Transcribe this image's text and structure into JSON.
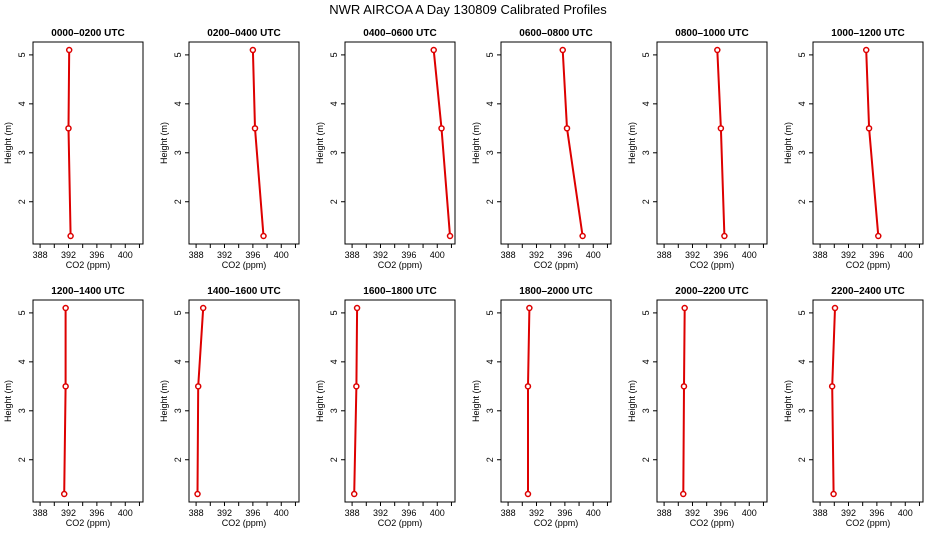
{
  "figure": {
    "title": "NWR AIRCOA A  Day 130809  Calibrated Profiles"
  },
  "chart_data": [
    {
      "type": "line",
      "title": "0000–0200 UTC",
      "xlabel": "CO2 (ppm)",
      "ylabel": "Height (m)",
      "xlim": [
        387,
        402.5
      ],
      "ylim": [
        1.3,
        5.1
      ],
      "x_ticks": [
        388,
        392,
        396,
        400
      ],
      "y_ticks": [
        2,
        3,
        4,
        5
      ],
      "series": [
        {
          "color": "#dd0000",
          "x": [
            392.1,
            392.0,
            392.3
          ],
          "y": [
            5.1,
            3.5,
            1.3
          ]
        }
      ]
    },
    {
      "type": "line",
      "title": "0200–0400 UTC",
      "xlabel": "CO2 (ppm)",
      "ylabel": "Height (m)",
      "xlim": [
        387,
        402.5
      ],
      "ylim": [
        1.3,
        5.1
      ],
      "x_ticks": [
        388,
        392,
        396,
        400
      ],
      "y_ticks": [
        2,
        3,
        4,
        5
      ],
      "series": [
        {
          "color": "#dd0000",
          "x": [
            396.0,
            396.3,
            397.5
          ],
          "y": [
            5.1,
            3.5,
            1.3
          ]
        }
      ]
    },
    {
      "type": "line",
      "title": "0400–0600 UTC",
      "xlabel": "CO2 (ppm)",
      "ylabel": "Height (m)",
      "xlim": [
        387,
        402.5
      ],
      "ylim": [
        1.3,
        5.1
      ],
      "x_ticks": [
        388,
        392,
        396,
        400
      ],
      "y_ticks": [
        2,
        3,
        4,
        5
      ],
      "series": [
        {
          "color": "#dd0000",
          "x": [
            399.5,
            400.6,
            401.8
          ],
          "y": [
            5.1,
            3.5,
            1.3
          ]
        }
      ]
    },
    {
      "type": "line",
      "title": "0600–0800 UTC",
      "xlabel": "CO2 (ppm)",
      "ylabel": "Height (m)",
      "xlim": [
        387,
        402.5
      ],
      "ylim": [
        1.3,
        5.1
      ],
      "x_ticks": [
        388,
        392,
        396,
        400
      ],
      "y_ticks": [
        2,
        3,
        4,
        5
      ],
      "series": [
        {
          "color": "#dd0000",
          "x": [
            395.7,
            396.3,
            398.5
          ],
          "y": [
            5.1,
            3.5,
            1.3
          ]
        }
      ]
    },
    {
      "type": "line",
      "title": "0800–1000 UTC",
      "xlabel": "CO2 (ppm)",
      "ylabel": "Height (m)",
      "xlim": [
        387,
        402.5
      ],
      "ylim": [
        1.3,
        5.1
      ],
      "x_ticks": [
        388,
        392,
        396,
        400
      ],
      "y_ticks": [
        2,
        3,
        4,
        5
      ],
      "series": [
        {
          "color": "#dd0000",
          "x": [
            395.5,
            396.0,
            396.5
          ],
          "y": [
            5.1,
            3.5,
            1.3
          ]
        }
      ]
    },
    {
      "type": "line",
      "title": "1000–1200 UTC",
      "xlabel": "CO2 (ppm)",
      "ylabel": "Height (m)",
      "xlim": [
        387,
        402.5
      ],
      "ylim": [
        1.3,
        5.1
      ],
      "x_ticks": [
        388,
        392,
        396,
        400
      ],
      "y_ticks": [
        2,
        3,
        4,
        5
      ],
      "series": [
        {
          "color": "#dd0000",
          "x": [
            394.5,
            394.9,
            396.2
          ],
          "y": [
            5.1,
            3.5,
            1.3
          ]
        }
      ]
    },
    {
      "type": "line",
      "title": "1200–1400 UTC",
      "xlabel": "CO2 (ppm)",
      "ylabel": "Height (m)",
      "xlim": [
        387,
        402.5
      ],
      "ylim": [
        1.3,
        5.1
      ],
      "x_ticks": [
        388,
        392,
        396,
        400
      ],
      "y_ticks": [
        2,
        3,
        4,
        5
      ],
      "series": [
        {
          "color": "#dd0000",
          "x": [
            391.6,
            391.6,
            391.4
          ],
          "y": [
            5.1,
            3.5,
            1.3
          ]
        }
      ]
    },
    {
      "type": "line",
      "title": "1400–1600 UTC",
      "xlabel": "CO2 (ppm)",
      "ylabel": "Height (m)",
      "xlim": [
        387,
        402.5
      ],
      "ylim": [
        1.3,
        5.1
      ],
      "x_ticks": [
        388,
        392,
        396,
        400
      ],
      "y_ticks": [
        2,
        3,
        4,
        5
      ],
      "series": [
        {
          "color": "#dd0000",
          "x": [
            389.0,
            388.3,
            388.2
          ],
          "y": [
            5.1,
            3.5,
            1.3
          ]
        }
      ]
    },
    {
      "type": "line",
      "title": "1600–1800 UTC",
      "xlabel": "CO2 (ppm)",
      "ylabel": "Height (m)",
      "xlim": [
        387,
        402.5
      ],
      "ylim": [
        1.3,
        5.1
      ],
      "x_ticks": [
        388,
        392,
        396,
        400
      ],
      "y_ticks": [
        2,
        3,
        4,
        5
      ],
      "series": [
        {
          "color": "#dd0000",
          "x": [
            388.7,
            388.6,
            388.3
          ],
          "y": [
            5.1,
            3.5,
            1.3
          ]
        }
      ]
    },
    {
      "type": "line",
      "title": "1800–2000 UTC",
      "xlabel": "CO2 (ppm)",
      "ylabel": "Height (m)",
      "xlim": [
        387,
        402.5
      ],
      "ylim": [
        1.3,
        5.1
      ],
      "x_ticks": [
        388,
        392,
        396,
        400
      ],
      "y_ticks": [
        2,
        3,
        4,
        5
      ],
      "series": [
        {
          "color": "#dd0000",
          "x": [
            391.0,
            390.8,
            390.8
          ],
          "y": [
            5.1,
            3.5,
            1.3
          ]
        }
      ]
    },
    {
      "type": "line",
      "title": "2000–2200 UTC",
      "xlabel": "CO2 (ppm)",
      "ylabel": "Height (m)",
      "xlim": [
        387,
        402.5
      ],
      "ylim": [
        1.3,
        5.1
      ],
      "x_ticks": [
        388,
        392,
        396,
        400
      ],
      "y_ticks": [
        2,
        3,
        4,
        5
      ],
      "series": [
        {
          "color": "#dd0000",
          "x": [
            390.9,
            390.8,
            390.7
          ],
          "y": [
            5.1,
            3.5,
            1.3
          ]
        }
      ]
    },
    {
      "type": "line",
      "title": "2200–2400 UTC",
      "xlabel": "CO2 (ppm)",
      "ylabel": "Height (m)",
      "xlim": [
        387,
        402.5
      ],
      "ylim": [
        1.3,
        5.1
      ],
      "x_ticks": [
        388,
        392,
        396,
        400
      ],
      "y_ticks": [
        2,
        3,
        4,
        5
      ],
      "series": [
        {
          "color": "#dd0000",
          "x": [
            390.1,
            389.7,
            389.9
          ],
          "y": [
            5.1,
            3.5,
            1.3
          ]
        }
      ]
    }
  ]
}
